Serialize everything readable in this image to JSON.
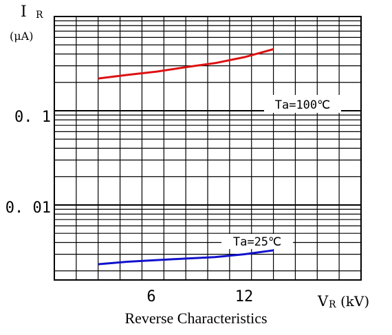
{
  "chart_data": {
    "type": "line",
    "caption": "Reverse Characteristics",
    "y_axis": {
      "symbol": "I",
      "subscript": "R",
      "unit": "(μA)",
      "scale": "log"
    },
    "x_axis": {
      "symbol": "V",
      "subscript": "R",
      "unit": "(kV)",
      "scale": "linear"
    },
    "x_ticks": [
      {
        "value": 6,
        "label": "6"
      },
      {
        "value": 12,
        "label": "12"
      }
    ],
    "y_ticks": [
      {
        "value": 0.1,
        "label": "0. 1"
      },
      {
        "value": 0.01,
        "label": "0. 01"
      }
    ],
    "xlim": [
      0,
      21
    ],
    "ylim": [
      0.0016,
      1
    ],
    "grid": true,
    "series": [
      {
        "name": "Ta=100℃",
        "color": "#dd1111",
        "x": [
          3,
          5,
          7,
          9,
          11,
          13,
          15
        ],
        "y": [
          0.22,
          0.24,
          0.26,
          0.29,
          0.32,
          0.37,
          0.45
        ]
      },
      {
        "name": "Ta=25℃",
        "color": "#1111cc",
        "x": [
          3,
          5,
          7,
          9,
          11,
          13,
          15
        ],
        "y": [
          0.00235,
          0.0025,
          0.0026,
          0.0027,
          0.0028,
          0.003,
          0.0033
        ]
      }
    ]
  }
}
